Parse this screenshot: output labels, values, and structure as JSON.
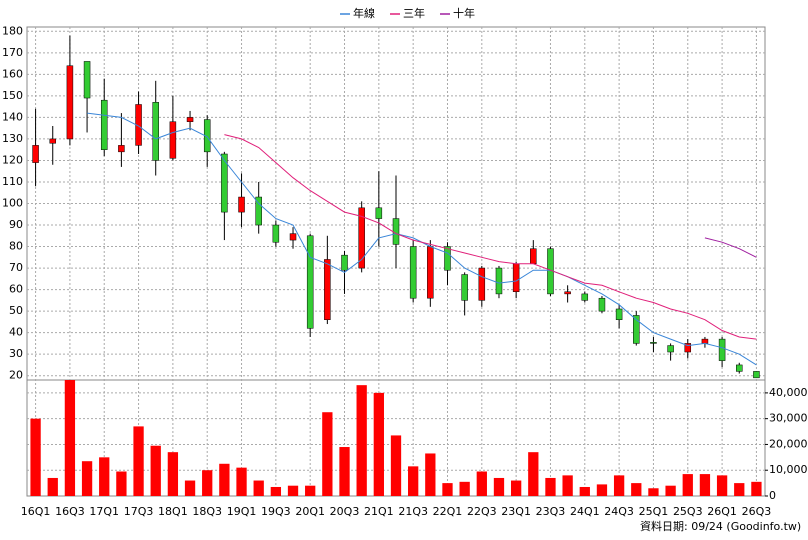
{
  "chart_data": {
    "type": "candlestick",
    "categories": [
      "16Q1",
      null,
      "16Q3",
      null,
      "17Q1",
      null,
      "17Q3",
      null,
      "18Q1",
      null,
      "18Q3",
      null,
      "19Q1",
      null,
      "19Q3",
      null,
      "20Q1",
      null,
      "20Q3",
      null,
      "21Q1",
      null,
      "21Q3",
      null,
      "22Q1",
      null,
      "22Q3",
      null,
      "23Q1",
      null,
      "23Q3",
      null,
      "24Q1",
      null,
      "24Q3",
      null,
      "25Q1",
      null,
      "25Q3",
      null,
      "26Q1",
      null,
      "26Q3"
    ],
    "open": [
      119,
      128,
      130,
      166,
      148,
      124,
      127,
      147,
      121,
      138,
      139,
      123,
      96,
      103,
      90,
      83,
      85,
      46,
      76,
      70,
      98,
      93,
      80,
      56,
      80,
      67,
      55,
      70,
      59,
      72,
      79,
      58,
      58,
      56,
      51,
      48,
      35.5,
      34,
      31,
      35,
      37,
      25,
      22
    ],
    "high": [
      144,
      136,
      178,
      166,
      158,
      142,
      152,
      157,
      150,
      143,
      141,
      124,
      114,
      110,
      92,
      89,
      86,
      85,
      78,
      101,
      115,
      113,
      83,
      83,
      82,
      68,
      71,
      71,
      73,
      83,
      80,
      62,
      59,
      57,
      53,
      50,
      38,
      35,
      37,
      38,
      38,
      26,
      22
    ],
    "low": [
      108,
      118,
      127,
      133,
      122,
      117,
      123,
      113,
      120,
      134,
      117,
      83,
      89,
      86,
      80,
      79,
      38,
      44,
      58,
      68,
      80,
      70,
      54,
      52,
      62,
      48,
      52,
      56,
      56,
      72,
      57,
      54,
      54,
      49,
      42,
      34,
      31,
      27,
      28,
      33,
      24,
      21,
      19
    ],
    "close": [
      127,
      130,
      164,
      149,
      125,
      127,
      146,
      120,
      138,
      140,
      124,
      96,
      103,
      90,
      82,
      86,
      42,
      74,
      69,
      98,
      93,
      81,
      56,
      80,
      69,
      55,
      70,
      58,
      72,
      79,
      58,
      59,
      55,
      50,
      46,
      35,
      35,
      31,
      35,
      37,
      27,
      22,
      19
    ],
    "up_color": "#ff0000",
    "down_color": "#33cc33",
    "volume": {
      "color": "#ff0000",
      "values": [
        30000,
        7000,
        45000,
        13500,
        15000,
        9500,
        27000,
        19500,
        17000,
        6000,
        10000,
        12500,
        11000,
        6000,
        3500,
        4000,
        4000,
        32500,
        19000,
        43000,
        40000,
        23500,
        11500,
        16500,
        5000,
        5500,
        9500,
        7000,
        6000,
        17000,
        7000,
        8000,
        3500,
        4500,
        8000,
        5000,
        3000,
        4000,
        8500,
        8500,
        8000,
        5000,
        5500
      ]
    },
    "series": [
      {
        "name": "年線",
        "color": "#3a86d8",
        "values": [
          null,
          null,
          null,
          142,
          141,
          140,
          136,
          130,
          133,
          135,
          131,
          120,
          110,
          100,
          93,
          90,
          75,
          72,
          68,
          74,
          84,
          86,
          84,
          80,
          77,
          70,
          66,
          63,
          64,
          69,
          69,
          66,
          62,
          58,
          53,
          46,
          40,
          37,
          34,
          35,
          33,
          30,
          25
        ]
      },
      {
        "name": "三年",
        "color": "#e0207a",
        "values": [
          null,
          null,
          null,
          null,
          null,
          null,
          null,
          null,
          null,
          null,
          null,
          132,
          130,
          126,
          119,
          112,
          106,
          101,
          96,
          94,
          91,
          86,
          83,
          81,
          79,
          77,
          75,
          73,
          72,
          72,
          69,
          66,
          63,
          62,
          59,
          56,
          54,
          51,
          49,
          46,
          41,
          38,
          37
        ]
      },
      {
        "name": "十年",
        "color": "#a020a0",
        "values": [
          null,
          null,
          null,
          null,
          null,
          null,
          null,
          null,
          null,
          null,
          null,
          null,
          null,
          null,
          null,
          null,
          null,
          null,
          null,
          null,
          null,
          null,
          null,
          null,
          null,
          null,
          null,
          null,
          null,
          null,
          null,
          null,
          null,
          null,
          null,
          null,
          null,
          null,
          null,
          84,
          82,
          79,
          75
        ]
      }
    ],
    "ylim": [
      18,
      182
    ],
    "yticks": [
      20,
      30,
      40,
      50,
      60,
      70,
      80,
      90,
      100,
      110,
      120,
      130,
      140,
      150,
      160,
      170,
      180
    ],
    "y2lim": [
      0,
      45000
    ],
    "y2ticks": [
      0,
      {
        "value": 10000,
        "label": "10,000"
      },
      {
        "value": 20000,
        "label": "20,000"
      },
      {
        "value": 30000,
        "label": "30,000"
      },
      {
        "value": 40000,
        "label": "40,000"
      }
    ],
    "grid": true,
    "footer": "資料日期: 09/24  (Goodinfo.tw)"
  }
}
